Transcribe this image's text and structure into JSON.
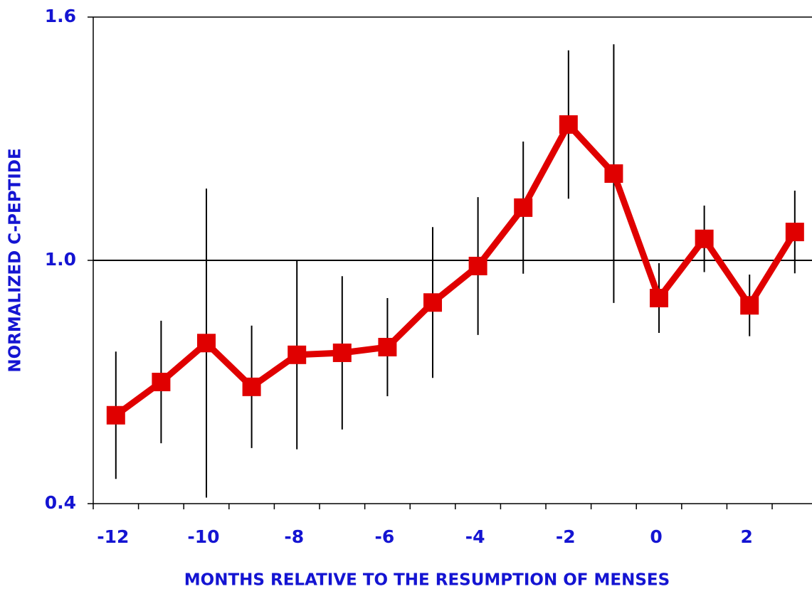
{
  "chart_data": {
    "type": "line",
    "x_label": "MONTHS RELATIVE TO THE RESUMPTION OF MENSES",
    "y_label": "NORMALIZED C-PEPTIDE",
    "x": [
      -12,
      -11,
      -10,
      -9,
      -8,
      -7,
      -6,
      -5,
      -4,
      -3,
      -2,
      -1,
      0,
      1,
      2,
      3
    ],
    "series": [
      {
        "color": "#e00000",
        "values": [
          0.618,
          0.7,
          0.796,
          0.688,
          0.767,
          0.772,
          0.786,
          0.896,
          0.986,
          1.13,
          1.335,
          1.214,
          0.907,
          1.053,
          0.889,
          1.07
        ],
        "errors": [
          0.157,
          0.151,
          0.381,
          0.151,
          0.233,
          0.189,
          0.121,
          0.186,
          0.17,
          0.163,
          0.183,
          0.319,
          0.086,
          0.082,
          0.076,
          0.102
        ]
      }
    ],
    "xlim": [
      -12.5,
      3.38
    ],
    "xticks": [
      -12,
      -10,
      -8,
      -6,
      -4,
      -2,
      0,
      2
    ],
    "ylim": [
      0.4,
      1.6
    ],
    "yticks": [
      0.4,
      {
        "value": 1.0,
        "label": "1.0"
      },
      1.6
    ],
    "reference_line": 1.0
  }
}
